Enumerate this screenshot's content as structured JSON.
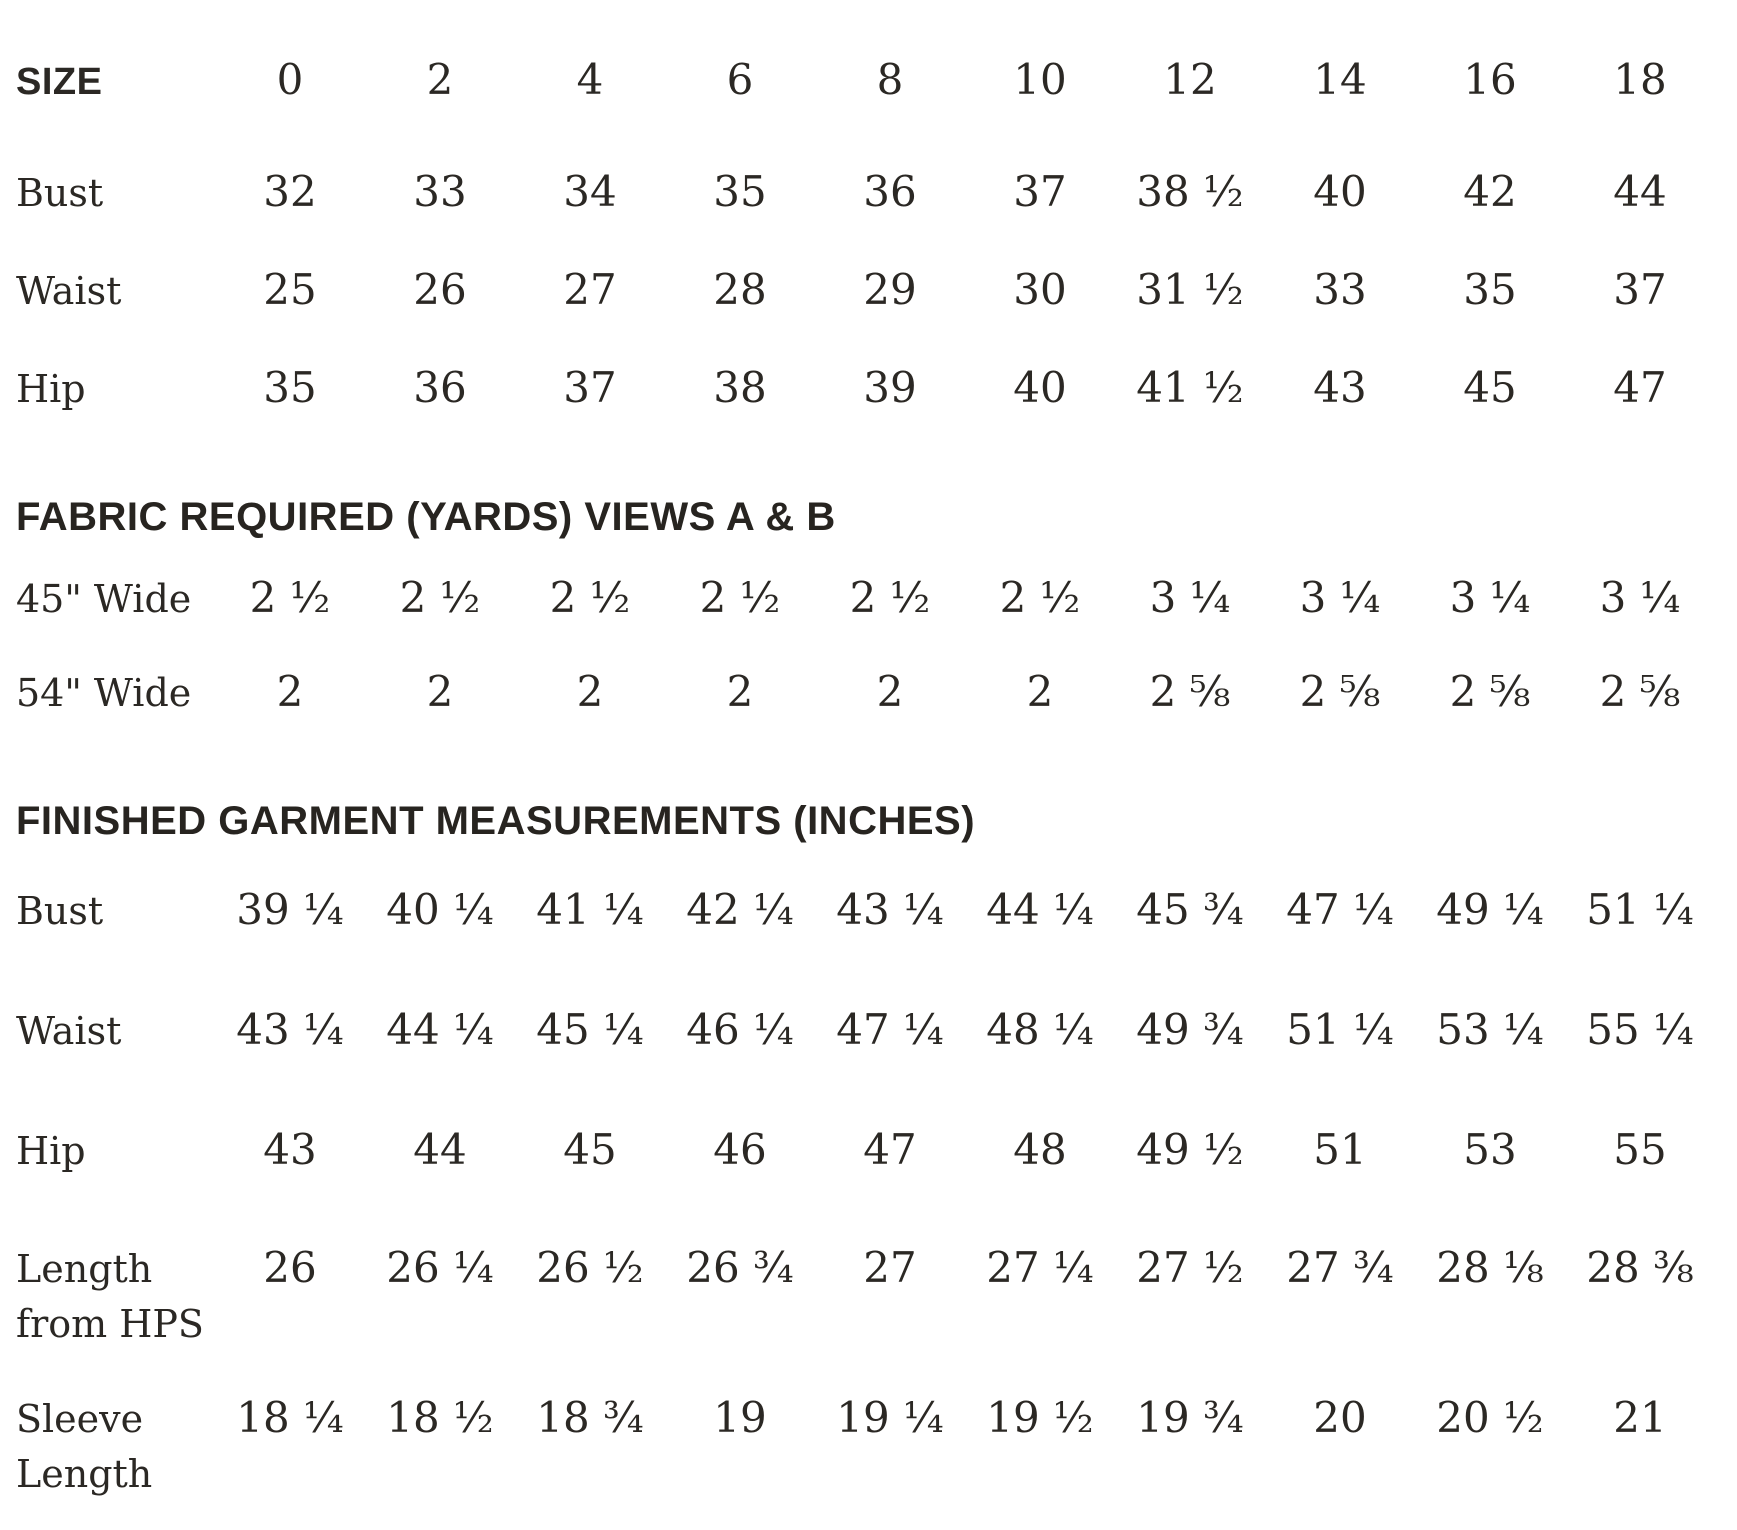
{
  "body_measurements": {
    "header_label": "SIZE",
    "sizes": [
      "0",
      "2",
      "4",
      "6",
      "8",
      "10",
      "12",
      "14",
      "16",
      "18"
    ],
    "rows": [
      {
        "label": "Bust",
        "values": [
          "32",
          "33",
          "34",
          "35",
          "36",
          "37",
          "38 ½",
          "40",
          "42",
          "44"
        ]
      },
      {
        "label": "Waist",
        "values": [
          "25",
          "26",
          "27",
          "28",
          "29",
          "30",
          "31 ½",
          "33",
          "35",
          "37"
        ]
      },
      {
        "label": "Hip",
        "values": [
          "35",
          "36",
          "37",
          "38",
          "39",
          "40",
          "41 ½",
          "43",
          "45",
          "47"
        ]
      }
    ]
  },
  "fabric_required": {
    "title": "FABRIC REQUIRED (YARDS) VIEWS A & B",
    "rows": [
      {
        "label": "45\" Wide",
        "values": [
          "2 ½",
          "2 ½",
          "2 ½",
          "2 ½",
          "2 ½",
          "2 ½",
          "3 ¼",
          "3 ¼",
          "3 ¼",
          "3 ¼"
        ]
      },
      {
        "label": "54\" Wide",
        "values": [
          "2",
          "2",
          "2",
          "2",
          "2",
          "2",
          "2 ⅝",
          "2 ⅝",
          "2 ⅝",
          "2 ⅝"
        ]
      }
    ]
  },
  "finished_garment": {
    "title": "FINISHED GARMENT MEASUREMENTS (INCHES)",
    "rows": [
      {
        "label": "Bust",
        "values": [
          "39 ¼",
          "40 ¼",
          "41 ¼",
          "42 ¼",
          "43 ¼",
          "44 ¼",
          "45 ¾",
          "47 ¼",
          "49 ¼",
          "51 ¼"
        ]
      },
      {
        "label": "Waist",
        "values": [
          "43 ¼",
          "44 ¼",
          "45 ¼",
          "46 ¼",
          "47 ¼",
          "48 ¼",
          "49 ¾",
          "51 ¼",
          "53 ¼",
          "55 ¼"
        ]
      },
      {
        "label": "Hip",
        "values": [
          "43",
          "44",
          "45",
          "46",
          "47",
          "48",
          "49 ½",
          "51",
          "53",
          "55"
        ]
      },
      {
        "label": "Length from HPS",
        "values": [
          "26",
          "26 ¼",
          "26 ½",
          "26 ¾",
          "27",
          "27 ¼",
          "27 ½",
          "27 ¾",
          "28 ⅛",
          "28 ⅜"
        ]
      },
      {
        "label": "Sleeve Length",
        "values": [
          "18 ¼",
          "18 ½",
          "18 ¾",
          "19",
          "19 ¼",
          "19 ½",
          "19 ¾",
          "20",
          "20 ½",
          "21"
        ]
      }
    ]
  }
}
